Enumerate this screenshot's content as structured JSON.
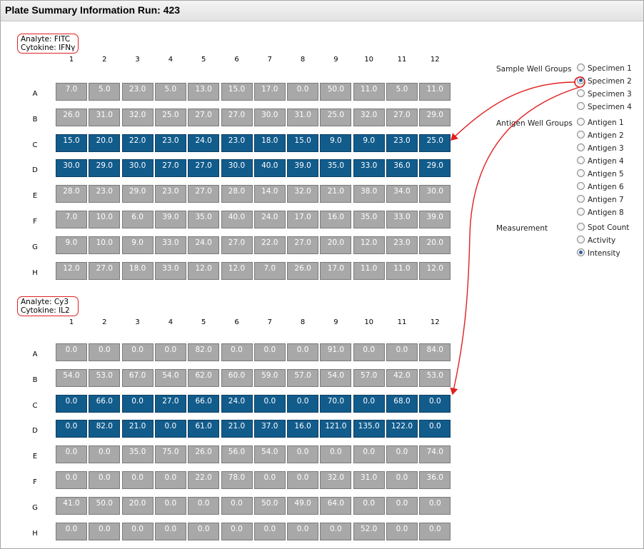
{
  "title": "Plate Summary Information Run: 423",
  "columns": [
    "1",
    "2",
    "3",
    "4",
    "5",
    "6",
    "7",
    "8",
    "9",
    "10",
    "11",
    "12"
  ],
  "rows": [
    "A",
    "B",
    "C",
    "D",
    "E",
    "F",
    "G",
    "H"
  ],
  "highlight_color": "#125c8c",
  "cell_color": "#a8a8a8",
  "plates": [
    {
      "analyte": "Analyte: FITC",
      "cytokine": "Cytokine: IFNγ",
      "highlighted_rows": [
        "C",
        "D"
      ],
      "values": [
        [
          "7.0",
          "5.0",
          "23.0",
          "5.0",
          "13.0",
          "15.0",
          "17.0",
          "0.0",
          "50.0",
          "11.0",
          "5.0",
          "11.0"
        ],
        [
          "26.0",
          "31.0",
          "32.0",
          "25.0",
          "27.0",
          "27.0",
          "30.0",
          "31.0",
          "25.0",
          "32.0",
          "27.0",
          "29.0"
        ],
        [
          "15.0",
          "20.0",
          "22.0",
          "23.0",
          "24.0",
          "23.0",
          "18.0",
          "15.0",
          "9.0",
          "9.0",
          "23.0",
          "25.0"
        ],
        [
          "30.0",
          "29.0",
          "30.0",
          "27.0",
          "27.0",
          "30.0",
          "40.0",
          "39.0",
          "35.0",
          "33.0",
          "36.0",
          "29.0"
        ],
        [
          "28.0",
          "23.0",
          "29.0",
          "23.0",
          "27.0",
          "28.0",
          "14.0",
          "32.0",
          "21.0",
          "38.0",
          "34.0",
          "30.0"
        ],
        [
          "7.0",
          "10.0",
          "6.0",
          "39.0",
          "35.0",
          "40.0",
          "24.0",
          "17.0",
          "16.0",
          "35.0",
          "33.0",
          "39.0"
        ],
        [
          "9.0",
          "10.0",
          "9.0",
          "33.0",
          "24.0",
          "27.0",
          "22.0",
          "27.0",
          "20.0",
          "12.0",
          "23.0",
          "20.0"
        ],
        [
          "12.0",
          "27.0",
          "18.0",
          "33.0",
          "12.0",
          "12.0",
          "7.0",
          "26.0",
          "17.0",
          "11.0",
          "11.0",
          "12.0"
        ]
      ]
    },
    {
      "analyte": "Analyte: Cy3",
      "cytokine": "Cytokine: IL2",
      "highlighted_rows": [
        "C",
        "D"
      ],
      "values": [
        [
          "0.0",
          "0.0",
          "0.0",
          "0.0",
          "82.0",
          "0.0",
          "0.0",
          "0.0",
          "91.0",
          "0.0",
          "0.0",
          "84.0"
        ],
        [
          "54.0",
          "53.0",
          "67.0",
          "54.0",
          "62.0",
          "60.0",
          "59.0",
          "57.0",
          "54.0",
          "57.0",
          "42.0",
          "53.0"
        ],
        [
          "0.0",
          "66.0",
          "0.0",
          "27.0",
          "66.0",
          "24.0",
          "0.0",
          "0.0",
          "70.0",
          "0.0",
          "68.0",
          "0.0"
        ],
        [
          "0.0",
          "82.0",
          "21.0",
          "0.0",
          "61.0",
          "21.0",
          "37.0",
          "16.0",
          "121.0",
          "135.0",
          "122.0",
          "0.0"
        ],
        [
          "0.0",
          "0.0",
          "35.0",
          "75.0",
          "26.0",
          "56.0",
          "54.0",
          "0.0",
          "0.0",
          "0.0",
          "0.0",
          "74.0"
        ],
        [
          "0.0",
          "0.0",
          "0.0",
          "0.0",
          "22.0",
          "78.0",
          "0.0",
          "0.0",
          "32.0",
          "31.0",
          "0.0",
          "36.0"
        ],
        [
          "41.0",
          "50.0",
          "20.0",
          "0.0",
          "0.0",
          "0.0",
          "50.0",
          "49.0",
          "64.0",
          "0.0",
          "0.0",
          "0.0"
        ],
        [
          "0.0",
          "0.0",
          "0.0",
          "0.0",
          "0.0",
          "0.0",
          "0.0",
          "0.0",
          "0.0",
          "52.0",
          "0.0",
          "0.0"
        ]
      ]
    }
  ],
  "controls": {
    "sample_label": "Sample Well Groups",
    "sample_options": [
      "Specimen 1",
      "Specimen 2",
      "Specimen 3",
      "Specimen 4"
    ],
    "sample_selected": "Specimen 2",
    "antigen_label": "Antigen Well Groups",
    "antigen_options": [
      "Antigen 1",
      "Antigen 2",
      "Antigen 3",
      "Antigen 4",
      "Antigen 5",
      "Antigen 6",
      "Antigen 7",
      "Antigen 8"
    ],
    "measurement_label": "Measurement",
    "measurement_options": [
      "Spot Count",
      "Activity",
      "Intensity"
    ],
    "measurement_selected": "Intensity"
  },
  "annotation_color": "#e02020"
}
